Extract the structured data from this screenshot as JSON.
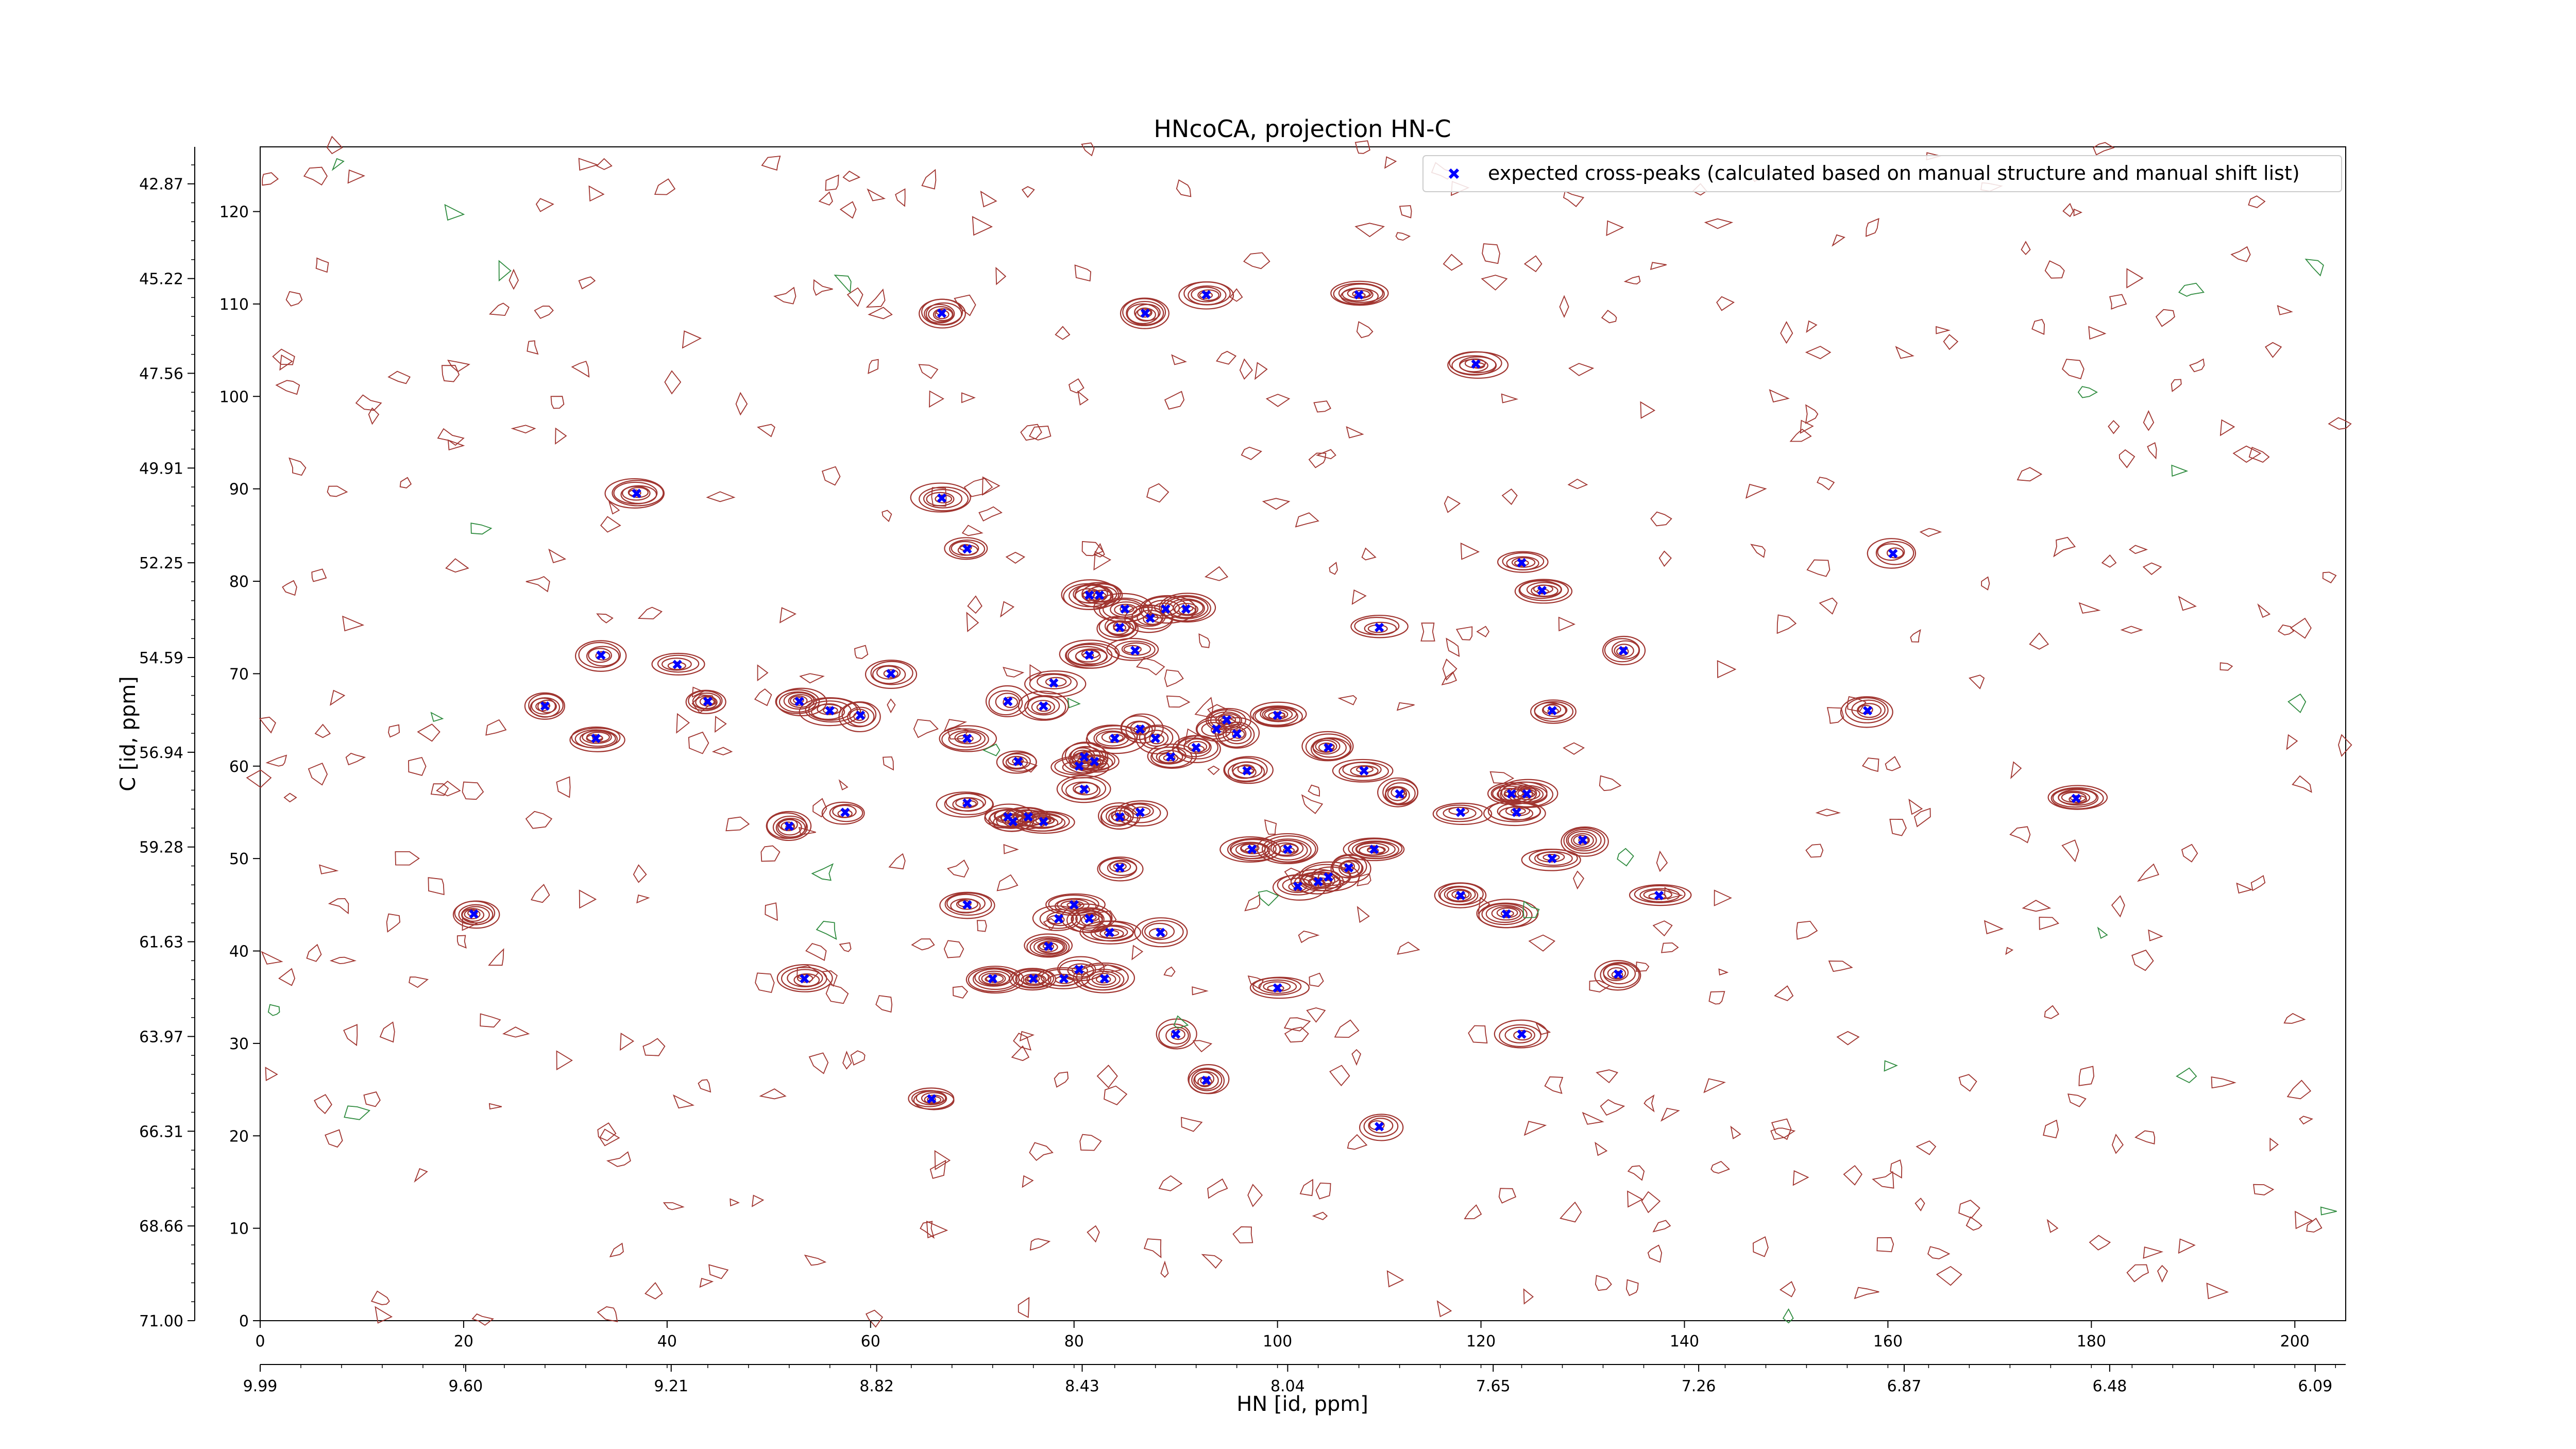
{
  "chart_data": {
    "type": "scatter",
    "title": "HNcoCA, projection HN-C",
    "xlabel": "HN [id, ppm]",
    "ylabel": "C [id, ppm]",
    "x_index_range": [
      0,
      205
    ],
    "y_index_range": [
      0,
      127
    ],
    "x_index_ticks": [
      "0",
      "20",
      "40",
      "60",
      "80",
      "100",
      "120",
      "140",
      "160",
      "180",
      "200"
    ],
    "y_index_ticks": [
      "0",
      "10",
      "20",
      "30",
      "40",
      "50",
      "60",
      "70",
      "80",
      "90",
      "100",
      "110",
      "120"
    ],
    "x_ppm_ticks": [
      {
        "at": 0,
        "label": "9.99"
      },
      {
        "at": 20.2,
        "label": "9.60"
      },
      {
        "at": 40.4,
        "label": "9.21"
      },
      {
        "at": 60.6,
        "label": "8.82"
      },
      {
        "at": 80.8,
        "label": "8.43"
      },
      {
        "at": 101.0,
        "label": "8.04"
      },
      {
        "at": 121.2,
        "label": "7.65"
      },
      {
        "at": 141.4,
        "label": "7.26"
      },
      {
        "at": 161.6,
        "label": "6.87"
      },
      {
        "at": 181.8,
        "label": "6.48"
      },
      {
        "at": 202.0,
        "label": "6.09"
      }
    ],
    "y_ppm_ticks": [
      {
        "at": 0,
        "label": "71.00"
      },
      {
        "at": 10.25,
        "label": "68.66"
      },
      {
        "at": 20.5,
        "label": "66.31"
      },
      {
        "at": 30.75,
        "label": "63.97"
      },
      {
        "at": 41.0,
        "label": "61.63"
      },
      {
        "at": 51.25,
        "label": "59.28"
      },
      {
        "at": 61.5,
        "label": "56.94"
      },
      {
        "at": 71.75,
        "label": "54.59"
      },
      {
        "at": 82.0,
        "label": "52.25"
      },
      {
        "at": 92.25,
        "label": "49.91"
      },
      {
        "at": 102.5,
        "label": "47.56"
      },
      {
        "at": 112.75,
        "label": "45.22"
      },
      {
        "at": 123.0,
        "label": "42.87"
      }
    ],
    "series": [
      {
        "name": "expected cross-peaks (calculated based on manual structure and manual shift list)",
        "marker": "x",
        "color": "#0000ff",
        "points": [
          [
            21,
            44
          ],
          [
            37,
            89.5
          ],
          [
            33.5,
            72
          ],
          [
            41,
            71
          ],
          [
            44,
            67
          ],
          [
            28,
            66.5
          ],
          [
            33,
            63
          ],
          [
            52,
            53.5
          ],
          [
            53,
            67
          ],
          [
            56,
            66
          ],
          [
            57.5,
            55
          ],
          [
            59,
            65.5
          ],
          [
            62,
            70
          ],
          [
            53.5,
            37
          ],
          [
            66,
            24
          ],
          [
            67,
            109
          ],
          [
            67,
            89
          ],
          [
            69.5,
            83.5
          ],
          [
            69.5,
            63
          ],
          [
            69.5,
            56
          ],
          [
            69.5,
            45
          ],
          [
            72,
            37
          ],
          [
            73.5,
            67
          ],
          [
            73.5,
            54.5
          ],
          [
            74,
            54
          ],
          [
            74.5,
            60.5
          ],
          [
            75.5,
            54.5
          ],
          [
            76,
            37
          ],
          [
            77,
            66.5
          ],
          [
            77,
            54
          ],
          [
            77.5,
            40.5
          ],
          [
            78,
            69
          ],
          [
            78.5,
            43.5
          ],
          [
            79,
            37
          ],
          [
            80,
            45
          ],
          [
            80.5,
            38
          ],
          [
            80.5,
            60
          ],
          [
            81,
            61
          ],
          [
            81,
            57.5
          ],
          [
            81.5,
            43.5
          ],
          [
            81.5,
            78.5
          ],
          [
            81.5,
            72
          ],
          [
            82,
            60.5
          ],
          [
            82.5,
            78.5
          ],
          [
            83,
            37
          ],
          [
            83.5,
            42
          ],
          [
            84,
            63
          ],
          [
            84.5,
            54.5
          ],
          [
            84.5,
            49
          ],
          [
            84.5,
            75
          ],
          [
            85,
            77
          ],
          [
            86,
            72.5
          ],
          [
            86.5,
            55
          ],
          [
            86.5,
            64
          ],
          [
            87,
            109
          ],
          [
            87.5,
            76
          ],
          [
            88,
            63
          ],
          [
            88.5,
            42
          ],
          [
            89,
            77
          ],
          [
            89.5,
            61
          ],
          [
            90,
            31
          ],
          [
            91,
            77
          ],
          [
            92,
            62
          ],
          [
            93,
            26
          ],
          [
            93,
            111
          ],
          [
            94,
            64
          ],
          [
            95,
            65
          ],
          [
            96,
            63.5
          ],
          [
            97,
            59.5
          ],
          [
            97.5,
            51
          ],
          [
            100,
            36
          ],
          [
            100,
            65.5
          ],
          [
            101,
            51
          ],
          [
            102,
            47
          ],
          [
            104,
            47.5
          ],
          [
            105,
            48
          ],
          [
            105,
            62
          ],
          [
            107,
            49
          ],
          [
            108.5,
            59.5
          ],
          [
            108,
            111
          ],
          [
            109.5,
            51
          ],
          [
            110,
            21
          ],
          [
            110,
            75
          ],
          [
            112,
            57
          ],
          [
            118,
            46
          ],
          [
            118,
            55
          ],
          [
            119.5,
            103.5
          ],
          [
            122.5,
            44
          ],
          [
            123,
            57
          ],
          [
            123.5,
            55
          ],
          [
            124,
            31
          ],
          [
            124,
            82
          ],
          [
            124.5,
            57
          ],
          [
            126,
            79
          ],
          [
            127,
            50
          ],
          [
            127,
            66
          ],
          [
            130,
            52
          ],
          [
            133.5,
            37.5
          ],
          [
            134,
            72.5
          ],
          [
            137.5,
            46
          ],
          [
            158,
            66
          ],
          [
            160.5,
            83
          ],
          [
            178.5,
            56.5
          ]
        ]
      }
    ],
    "contours": "dark red (#8b2222) positive contour levels with a few green (#2e8b3e) negative contours around every cross-peak, plus low-level noise contours across the spectrum",
    "legend_position": "top-right",
    "grid": false
  }
}
